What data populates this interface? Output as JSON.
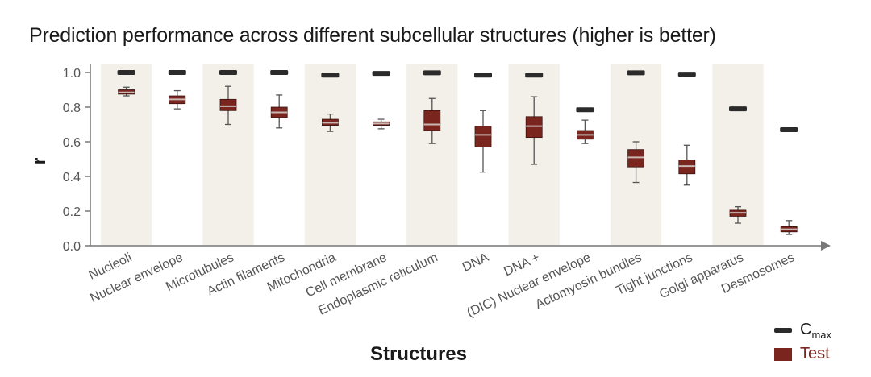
{
  "chart_data": {
    "type": "box",
    "title": "Prediction performance across different subcellular structures (higher is better)",
    "xlabel": "Structures",
    "ylabel": "r",
    "ylim": [
      0,
      1.0
    ],
    "yticks": [
      0.0,
      0.2,
      0.4,
      0.6,
      0.8,
      1.0
    ],
    "ytick_labels": [
      "0.0",
      "0.2",
      "0.4",
      "0.6",
      "0.8",
      "1.0"
    ],
    "categories": [
      "Nucleoli",
      "Nuclear envelope",
      "Microtubules",
      "Actin filaments",
      "Mitochondria",
      "Cell membrane",
      "Endoplasmic reticulum",
      "DNA",
      "DNA +",
      "(DIC) Nuclear envelope",
      "Actomyosin bundles",
      "Tight junctions",
      "Golgi apparatus",
      "Desmosomes"
    ],
    "series": [
      {
        "name": "Cmax",
        "type": "marker",
        "values": [
          1.0,
          1.0,
          1.0,
          1.0,
          0.985,
          0.995,
          0.998,
          0.985,
          0.985,
          0.785,
          0.998,
          0.99,
          0.79,
          0.67
        ]
      },
      {
        "name": "Test",
        "type": "box",
        "boxes": [
          {
            "min": 0.865,
            "q1": 0.875,
            "median": 0.885,
            "q3": 0.9,
            "max": 0.915
          },
          {
            "min": 0.79,
            "q1": 0.82,
            "median": 0.845,
            "q3": 0.865,
            "max": 0.895
          },
          {
            "min": 0.7,
            "q1": 0.78,
            "median": 0.805,
            "q3": 0.845,
            "max": 0.92
          },
          {
            "min": 0.68,
            "q1": 0.74,
            "median": 0.77,
            "q3": 0.8,
            "max": 0.87
          },
          {
            "min": 0.66,
            "q1": 0.695,
            "median": 0.71,
            "q3": 0.73,
            "max": 0.76
          },
          {
            "min": 0.675,
            "q1": 0.695,
            "median": 0.705,
            "q3": 0.715,
            "max": 0.73
          },
          {
            "min": 0.59,
            "q1": 0.665,
            "median": 0.7,
            "q3": 0.78,
            "max": 0.85
          },
          {
            "min": 0.425,
            "q1": 0.57,
            "median": 0.64,
            "q3": 0.69,
            "max": 0.78
          },
          {
            "min": 0.47,
            "q1": 0.625,
            "median": 0.69,
            "q3": 0.745,
            "max": 0.86
          },
          {
            "min": 0.59,
            "q1": 0.615,
            "median": 0.64,
            "q3": 0.665,
            "max": 0.725
          },
          {
            "min": 0.365,
            "q1": 0.455,
            "median": 0.51,
            "q3": 0.555,
            "max": 0.6
          },
          {
            "min": 0.35,
            "q1": 0.415,
            "median": 0.46,
            "q3": 0.495,
            "max": 0.58
          },
          {
            "min": 0.13,
            "q1": 0.17,
            "median": 0.19,
            "q3": 0.205,
            "max": 0.225
          },
          {
            "min": 0.065,
            "q1": 0.08,
            "median": 0.095,
            "q3": 0.11,
            "max": 0.145
          }
        ]
      }
    ],
    "shaded_columns": [
      0,
      2,
      4,
      6,
      8,
      10,
      12
    ],
    "colors": {
      "test_fill": "#7a261f",
      "cmax": "#2b2b2b",
      "median": "#c9b8b4",
      "shade": "#f3f0e9",
      "axis": "#777777"
    },
    "legend": {
      "position": "bottom-right",
      "cmax_label": "C",
      "cmax_sub": "max",
      "test_label": "Test"
    },
    "grid": false
  }
}
